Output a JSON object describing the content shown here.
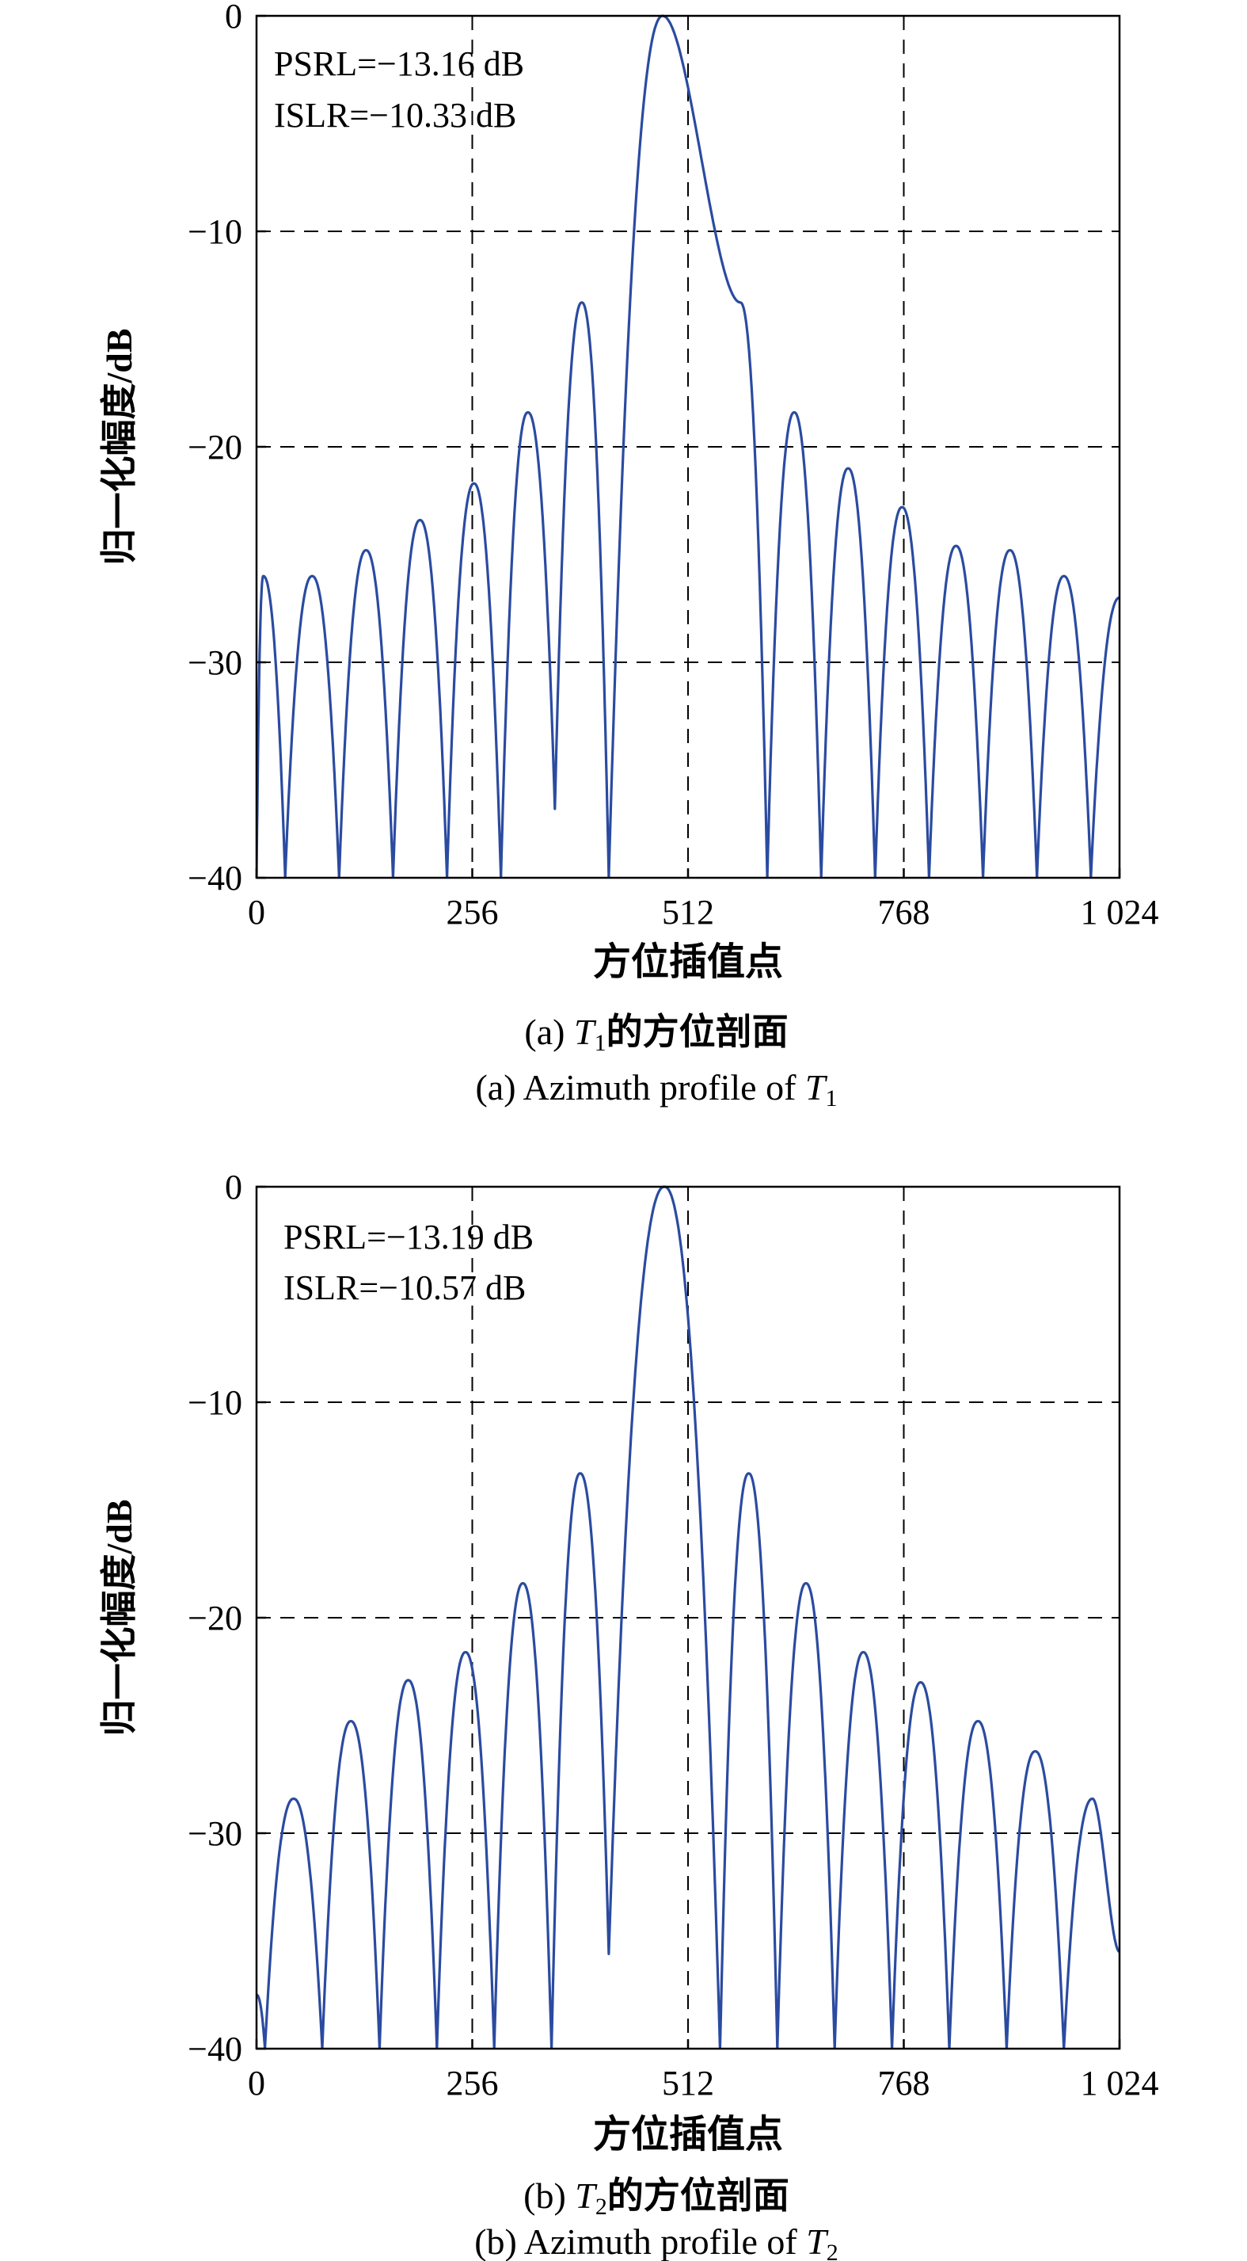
{
  "chart_data": [
    {
      "type": "line",
      "title": "",
      "xlabel": "方位插值点",
      "ylabel": "归一化幅度/dB",
      "xlim": [
        0,
        1024
      ],
      "ylim": [
        -40,
        0
      ],
      "x_ticks": [
        0,
        256,
        512,
        768,
        1024
      ],
      "x_tick_labels": [
        "0",
        "256",
        "512",
        "768",
        "1 024"
      ],
      "y_ticks": [
        0,
        -10,
        -20,
        -30,
        -40
      ],
      "y_tick_labels": [
        "0",
        "−10",
        "−20",
        "−30",
        "−40"
      ],
      "grid": true,
      "annotations": [
        "PSRL=−13.16 dB",
        "ISLR=−10.33 dB"
      ],
      "caption_cn": {
        "prefix": "(a) ",
        "var": "T",
        "sub": "1",
        "suffix": "的方位剖面"
      },
      "caption_en": {
        "prefix": "(a) Azimuth profile of ",
        "var": "T",
        "sub": "1"
      },
      "line_color": "#2b4ba0",
      "series": [
        {
          "nulls": [
            0,
            34,
            98,
            162,
            226,
            290,
            354,
            418,
            606,
            670,
            734,
            798,
            862,
            926,
            990
          ],
          "peaks": [
            {
              "x": 8,
              "y": -26.0
            },
            {
              "x": 66,
              "y": -26.0
            },
            {
              "x": 130,
              "y": -24.8
            },
            {
              "x": 194,
              "y": -23.4
            },
            {
              "x": 258,
              "y": -21.7
            },
            {
              "x": 322,
              "y": -18.4
            },
            {
              "x": 386,
              "y": -13.3
            },
            {
              "x": 482,
              "y": 0
            },
            {
              "x": 574,
              "y": -13.3
            },
            {
              "x": 638,
              "y": -18.4
            },
            {
              "x": 702,
              "y": -21.0
            },
            {
              "x": 766,
              "y": -22.8
            },
            {
              "x": 830,
              "y": -24.6
            },
            {
              "x": 894,
              "y": -24.8
            },
            {
              "x": 958,
              "y": -26.0
            },
            {
              "x": 1024,
              "y": -27.0
            }
          ],
          "null_depths": [
            -40,
            -40,
            -40,
            -40,
            -40,
            -40,
            -36.8,
            -40,
            -40,
            -40,
            -40,
            -40,
            -40,
            -40,
            -40
          ]
        }
      ]
    },
    {
      "type": "line",
      "title": "",
      "xlabel": "方位插值点",
      "ylabel": "归一化幅度/dB",
      "xlim": [
        0,
        1024
      ],
      "ylim": [
        -40,
        0
      ],
      "x_ticks": [
        0,
        256,
        512,
        768,
        1024
      ],
      "x_tick_labels": [
        "0",
        "256",
        "512",
        "768",
        "1 024"
      ],
      "y_ticks": [
        0,
        -10,
        -20,
        -30,
        -40
      ],
      "y_tick_labels": [
        "0",
        "−10",
        "−20",
        "−30",
        "−40"
      ],
      "grid": true,
      "annotations": [
        "PSRL=−13.19 dB",
        "ISLR=−10.57 dB"
      ],
      "caption_cn": {
        "prefix": "(b) ",
        "var": "T",
        "sub": "2",
        "suffix": "的方位剖面"
      },
      "caption_en": {
        "prefix": "(b) Azimuth profile of ",
        "var": "T",
        "sub": "2"
      },
      "line_color": "#2b4ba0",
      "series": [
        {
          "nulls": [
            10,
            78,
            146,
            214,
            282,
            350,
            418,
            550,
            618,
            686,
            754,
            822,
            890,
            958
          ],
          "peaks": [
            {
              "x": 0,
              "y": -37.5
            },
            {
              "x": 44,
              "y": -28.4
            },
            {
              "x": 112,
              "y": -24.8
            },
            {
              "x": 180,
              "y": -22.9
            },
            {
              "x": 248,
              "y": -21.6
            },
            {
              "x": 316,
              "y": -18.4
            },
            {
              "x": 384,
              "y": -13.3
            },
            {
              "x": 484,
              "y": 0
            },
            {
              "x": 584,
              "y": -13.3
            },
            {
              "x": 652,
              "y": -18.4
            },
            {
              "x": 720,
              "y": -21.6
            },
            {
              "x": 788,
              "y": -23.0
            },
            {
              "x": 856,
              "y": -24.8
            },
            {
              "x": 924,
              "y": -26.2
            },
            {
              "x": 992,
              "y": -28.4
            },
            {
              "x": 1024,
              "y": -35.5
            }
          ],
          "null_depths": [
            -40,
            -40,
            -40,
            -40,
            -40,
            -40,
            -35.6,
            -40,
            -40,
            -40,
            -40,
            -40,
            -40,
            -40
          ]
        }
      ]
    }
  ]
}
